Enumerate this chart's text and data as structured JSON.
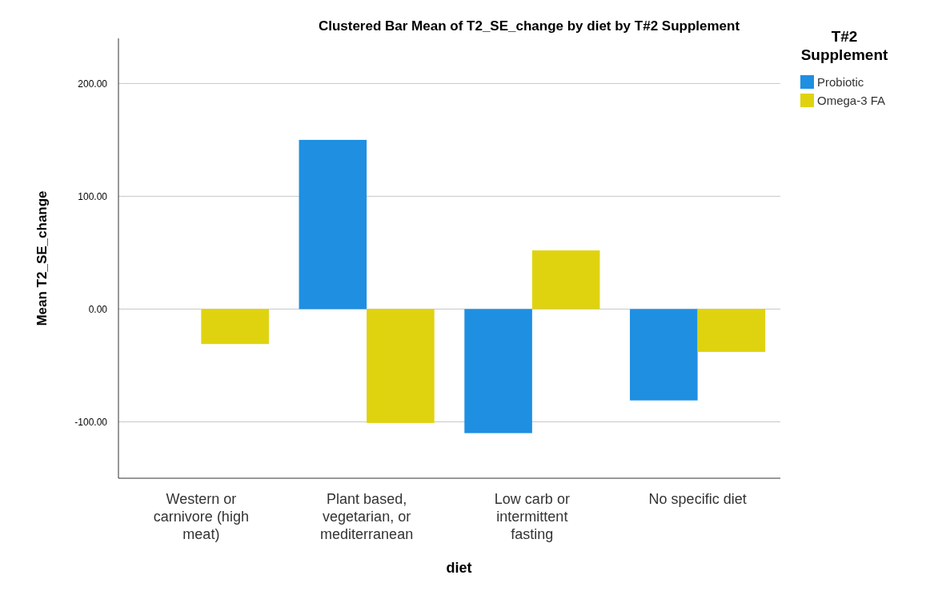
{
  "chart_data": {
    "type": "bar",
    "title": "Clustered Bar Mean of T2_SE_change by diet by T#2 Supplement",
    "xlabel": "diet",
    "ylabel": "Mean T2_SE_change",
    "legend_title": "T#2 Supplement",
    "categories": [
      "Western or carnivore (high meat)",
      "Plant based, vegetarian, or mediterranean",
      "Low carb or intermittent fasting",
      "No specific diet"
    ],
    "series": [
      {
        "name": "Probiotic",
        "color": "#1e8fe1",
        "values": [
          null,
          150,
          -110,
          -81
        ]
      },
      {
        "name": "Omega-3 FA",
        "color": "#dfd310",
        "values": [
          -31,
          -101,
          52,
          -38
        ]
      }
    ],
    "ylim": [
      -150,
      240
    ],
    "yticks": [
      {
        "value": -100,
        "label": "-100.00"
      },
      {
        "value": 0,
        "label": "0.00"
      },
      {
        "value": 100,
        "label": "100.00"
      },
      {
        "value": 200,
        "label": "200.00"
      }
    ],
    "grid": "y",
    "legend": "top right"
  }
}
